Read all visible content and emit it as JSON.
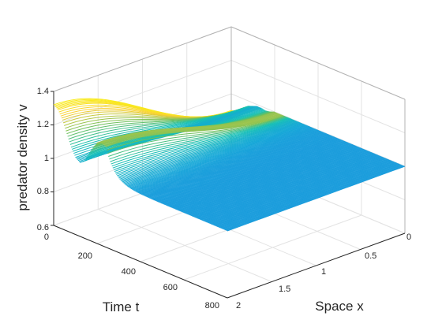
{
  "chart_data": {
    "type": "surface",
    "title": "",
    "xlabel": "Space x",
    "ylabel": "Time t",
    "zlabel": "predator density v",
    "xlim": [
      0,
      2
    ],
    "ylim": [
      0,
      800
    ],
    "zlim": [
      0.6,
      1.4
    ],
    "x_ticks": [
      "0",
      "0.5",
      "1",
      "1.5",
      "2"
    ],
    "y_ticks": [
      "0",
      "200",
      "400",
      "600",
      "800"
    ],
    "z_ticks": [
      "0.6",
      "0.8",
      "1",
      "1.2",
      "1.4"
    ],
    "grid": true,
    "colormap": [
      "#3e26a8",
      "#2d6fee",
      "#15a8d8",
      "#16c0b5",
      "#73c05a",
      "#f9d035",
      "#f9fb0e"
    ],
    "series": [
      {
        "t": [
          0,
          20,
          40,
          60,
          80,
          100,
          120,
          140,
          160,
          180,
          200,
          220,
          240
        ],
        "v_x0": [
          1.32,
          1.3,
          1.25,
          1.18,
          1.11,
          1.06,
          1.04,
          1.06,
          1.11,
          1.16,
          1.2,
          1.21,
          1.2
        ],
        "v_x2": [
          0.9,
          0.91,
          0.93,
          0.95,
          0.97,
          0.98,
          0.99,
          0.99,
          0.985,
          0.99,
          1.0,
          1.0,
          1.0
        ]
      }
    ],
    "steady_state": 1.0
  }
}
